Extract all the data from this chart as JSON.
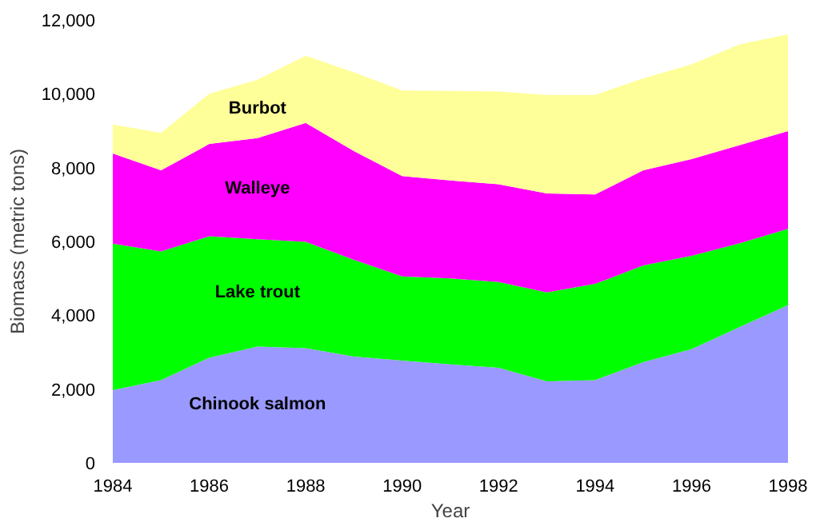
{
  "chart_data": {
    "type": "area",
    "stacked": true,
    "xlabel": "Year",
    "ylabel": "Biomass (metric tons)",
    "x": [
      1984,
      1985,
      1986,
      1987,
      1988,
      1989,
      1990,
      1991,
      1992,
      1993,
      1994,
      1995,
      1996,
      1997,
      1998
    ],
    "series": [
      {
        "name": "Chinook salmon",
        "color": "#9999ff",
        "values": [
          1970,
          2240,
          2850,
          3150,
          3110,
          2880,
          2770,
          2670,
          2580,
          2210,
          2240,
          2730,
          3080,
          3680,
          4270
        ]
      },
      {
        "name": "Lake trout",
        "color": "#00ff00",
        "values": [
          3970,
          3490,
          3290,
          2910,
          2880,
          2620,
          2280,
          2330,
          2320,
          2410,
          2610,
          2620,
          2530,
          2270,
          2070
        ]
      },
      {
        "name": "Walleye",
        "color": "#ff00ff",
        "values": [
          2440,
          2200,
          2500,
          2740,
          3220,
          2950,
          2720,
          2650,
          2650,
          2680,
          2420,
          2580,
          2620,
          2660,
          2650
        ]
      },
      {
        "name": "Burbot",
        "color": "#ffff99",
        "values": [
          790,
          1010,
          1360,
          1580,
          1820,
          2130,
          2320,
          2430,
          2510,
          2670,
          2700,
          2490,
          2570,
          2730,
          2620
        ]
      }
    ],
    "xlim": [
      1984,
      1998
    ],
    "xticks": [
      1984,
      1986,
      1988,
      1990,
      1992,
      1994,
      1996,
      1998
    ],
    "ylim": [
      0,
      12000
    ],
    "yticks": [
      0,
      {
        "value": 2000,
        "label": "2,000"
      },
      {
        "value": 4000,
        "label": "4,000"
      },
      {
        "value": 6000,
        "label": "6,000"
      },
      {
        "value": 8000,
        "label": "8,000"
      },
      {
        "value": 10000,
        "label": "10,000"
      },
      {
        "value": 12000,
        "label": "12,000"
      }
    ],
    "grid": false,
    "legend": false
  }
}
